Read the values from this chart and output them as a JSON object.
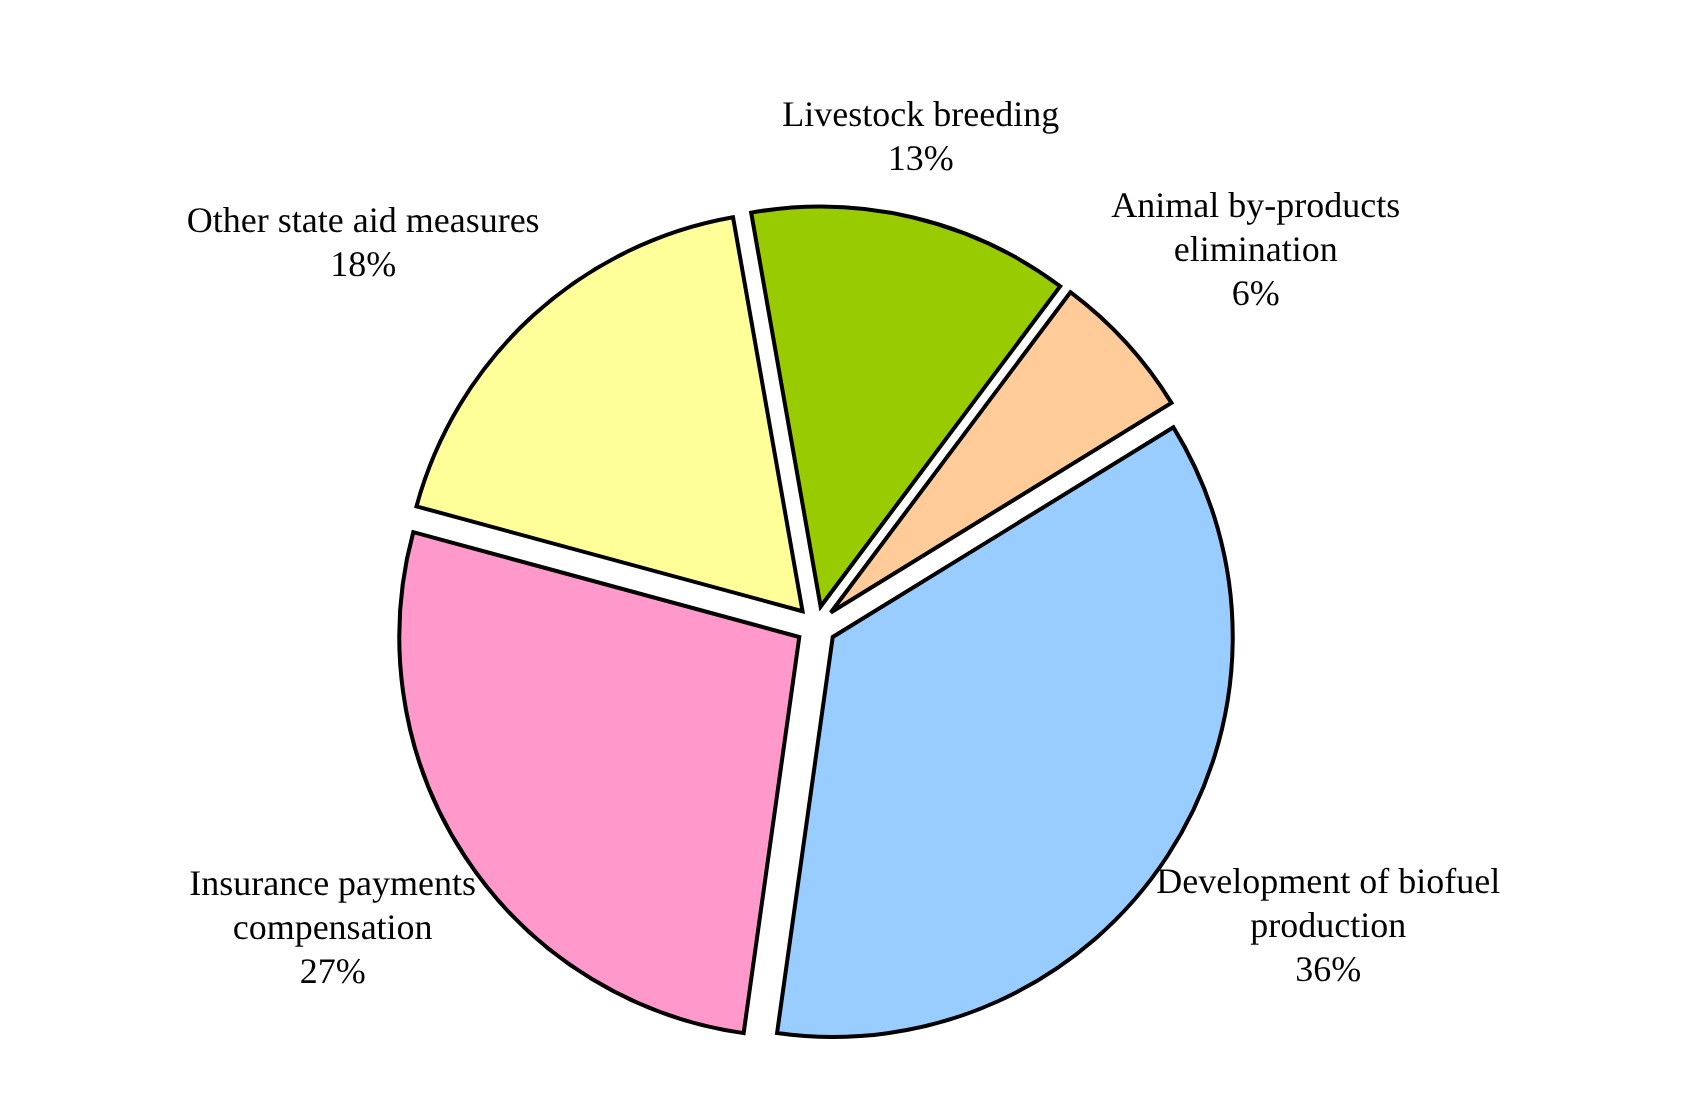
{
  "chart_data": {
    "type": "pie",
    "categories": [
      "Livestock breeding",
      "Animal by-products elimination",
      "Development of biofuel production",
      "Insurance payments compensation",
      "Other state aid measures"
    ],
    "values": [
      13,
      6,
      36,
      27,
      18
    ],
    "value_labels": [
      "13%",
      "6%",
      "36%",
      "27%",
      "18%"
    ],
    "colors": [
      "#99cc00",
      "#ffcc99",
      "#99ccff",
      "#ff99cc",
      "#ffff99"
    ]
  }
}
